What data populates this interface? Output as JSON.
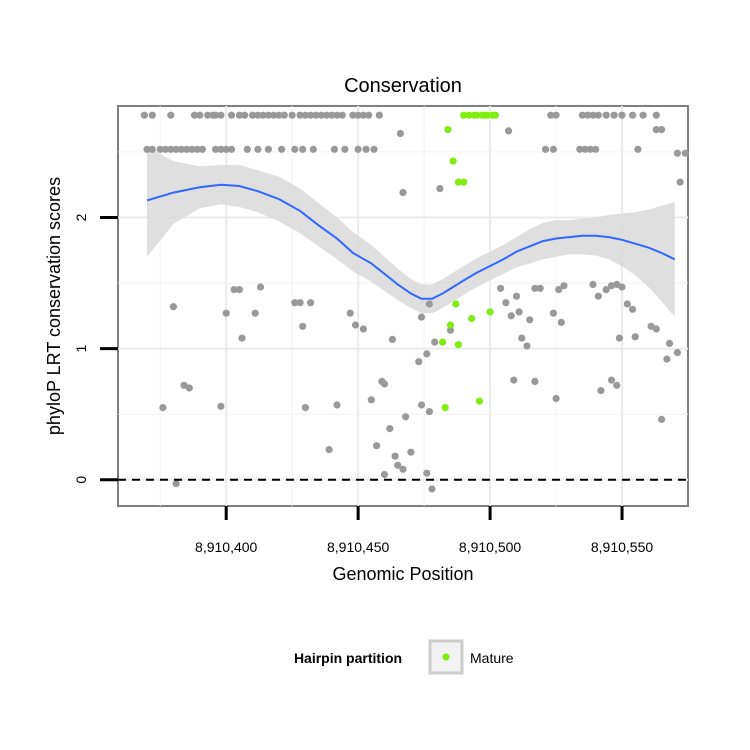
{
  "chart_data": {
    "type": "scatter",
    "title": "Conservation",
    "xlabel": "Genomic Position",
    "ylabel": "phyloP LRT conservation scores",
    "xlim": [
      8910359,
      8910575
    ],
    "ylim": [
      -0.2,
      2.85
    ],
    "x_ticks": [
      {
        "value": 8910400,
        "label": "8,910,400"
      },
      {
        "value": 8910450,
        "label": "8,910,450"
      },
      {
        "value": 8910500,
        "label": "8,910,500"
      },
      {
        "value": 8910550,
        "label": "8,910,550"
      }
    ],
    "y_ticks": [
      {
        "value": 0,
        "label": "0"
      },
      {
        "value": 1,
        "label": "1"
      },
      {
        "value": 2,
        "label": "2"
      }
    ],
    "grid": true,
    "reference_line": {
      "y": 0,
      "style": "dashed"
    },
    "legend": {
      "title": "Hairpin partition",
      "position": "bottom",
      "entries": [
        {
          "label": "Mature",
          "color": "#80ee10"
        }
      ]
    },
    "colors": {
      "other_points": "#999999",
      "mature_points": "#80ee10",
      "smooth_line": "#3366ff",
      "confidence_band": "#d9d9d9"
    },
    "series": [
      {
        "name": "",
        "color": "#999999",
        "points": [
          [
            8910369,
            2.78
          ],
          [
            8910372,
            2.78
          ],
          [
            8910379,
            2.78
          ],
          [
            8910388,
            2.78
          ],
          [
            8910390,
            2.78
          ],
          [
            8910393,
            2.78
          ],
          [
            8910395,
            2.78
          ],
          [
            8910396,
            2.78
          ],
          [
            8910398,
            2.78
          ],
          [
            8910402,
            2.78
          ],
          [
            8910405,
            2.78
          ],
          [
            8910407,
            2.78
          ],
          [
            8910410,
            2.78
          ],
          [
            8910412,
            2.78
          ],
          [
            8910414,
            2.78
          ],
          [
            8910416,
            2.78
          ],
          [
            8910418,
            2.78
          ],
          [
            8910420,
            2.78
          ],
          [
            8910422,
            2.78
          ],
          [
            8910425,
            2.78
          ],
          [
            8910428,
            2.78
          ],
          [
            8910430,
            2.78
          ],
          [
            8910432,
            2.78
          ],
          [
            8910434,
            2.78
          ],
          [
            8910436,
            2.78
          ],
          [
            8910438,
            2.78
          ],
          [
            8910440,
            2.78
          ],
          [
            8910442,
            2.78
          ],
          [
            8910444,
            2.78
          ],
          [
            8910448,
            2.78
          ],
          [
            8910450,
            2.78
          ],
          [
            8910452,
            2.78
          ],
          [
            8910454,
            2.78
          ],
          [
            8910458,
            2.78
          ],
          [
            8910523,
            2.78
          ],
          [
            8910525,
            2.78
          ],
          [
            8910535,
            2.78
          ],
          [
            8910537,
            2.78
          ],
          [
            8910539,
            2.78
          ],
          [
            8910541,
            2.78
          ],
          [
            8910544,
            2.78
          ],
          [
            8910547,
            2.78
          ],
          [
            8910550,
            2.78
          ],
          [
            8910554,
            2.78
          ],
          [
            8910558,
            2.78
          ],
          [
            8910563,
            2.78
          ],
          [
            8910370,
            2.52
          ],
          [
            8910372,
            2.52
          ],
          [
            8910375,
            2.52
          ],
          [
            8910377,
            2.52
          ],
          [
            8910379,
            2.52
          ],
          [
            8910381,
            2.52
          ],
          [
            8910383,
            2.52
          ],
          [
            8910385,
            2.52
          ],
          [
            8910387,
            2.52
          ],
          [
            8910389,
            2.52
          ],
          [
            8910391,
            2.52
          ],
          [
            8910396,
            2.52
          ],
          [
            8910398,
            2.52
          ],
          [
            8910400,
            2.52
          ],
          [
            8910402,
            2.52
          ],
          [
            8910408,
            2.52
          ],
          [
            8910412,
            2.52
          ],
          [
            8910416,
            2.52
          ],
          [
            8910421,
            2.52
          ],
          [
            8910426,
            2.52
          ],
          [
            8910429,
            2.52
          ],
          [
            8910433,
            2.52
          ],
          [
            8910441,
            2.52
          ],
          [
            8910445,
            2.52
          ],
          [
            8910450,
            2.52
          ],
          [
            8910453,
            2.52
          ],
          [
            8910456,
            2.52
          ],
          [
            8910521,
            2.52
          ],
          [
            8910524,
            2.52
          ],
          [
            8910534,
            2.52
          ],
          [
            8910536,
            2.52
          ],
          [
            8910538,
            2.52
          ],
          [
            8910540,
            2.52
          ],
          [
            8910556,
            2.52
          ],
          [
            8910571,
            2.49
          ],
          [
            8910574,
            2.49
          ],
          [
            8910563,
            2.67
          ],
          [
            8910565,
            2.67
          ],
          [
            8910507,
            2.66
          ],
          [
            8910466,
            2.64
          ],
          [
            8910572,
            2.27
          ],
          [
            8910467,
            2.19
          ],
          [
            8910481,
            2.22
          ],
          [
            8910380,
            1.32
          ],
          [
            8910403,
            1.45
          ],
          [
            8910405,
            1.45
          ],
          [
            8910413,
            1.47
          ],
          [
            8910400,
            1.27
          ],
          [
            8910411,
            1.27
          ],
          [
            8910406,
            1.08
          ],
          [
            8910426,
            1.35
          ],
          [
            8910428,
            1.35
          ],
          [
            8910432,
            1.35
          ],
          [
            8910429,
            1.17
          ],
          [
            8910447,
            1.27
          ],
          [
            8910449,
            1.18
          ],
          [
            8910452,
            1.15
          ],
          [
            8910463,
            1.07
          ],
          [
            8910474,
            1.24
          ],
          [
            8910477,
            1.34
          ],
          [
            8910476,
            0.96
          ],
          [
            8910473,
            0.9
          ],
          [
            8910485,
            1.14
          ],
          [
            8910479,
            1.05
          ],
          [
            8910504,
            1.46
          ],
          [
            8910506,
            1.35
          ],
          [
            8910508,
            1.25
          ],
          [
            8910510,
            1.4
          ],
          [
            8910511,
            1.28
          ],
          [
            8910512,
            1.08
          ],
          [
            8910514,
            1.02
          ],
          [
            8910515,
            1.22
          ],
          [
            8910517,
            1.46
          ],
          [
            8910519,
            1.46
          ],
          [
            8910524,
            1.27
          ],
          [
            8910526,
            1.45
          ],
          [
            8910528,
            1.48
          ],
          [
            8910527,
            1.2
          ],
          [
            8910539,
            1.49
          ],
          [
            8910541,
            1.4
          ],
          [
            8910544,
            1.45
          ],
          [
            8910546,
            1.48
          ],
          [
            8910548,
            1.49
          ],
          [
            8910550,
            1.47
          ],
          [
            8910552,
            1.34
          ],
          [
            8910549,
            1.08
          ],
          [
            8910554,
            1.3
          ],
          [
            8910555,
            1.09
          ],
          [
            8910561,
            1.17
          ],
          [
            8910563,
            1.15
          ],
          [
            8910568,
            1.04
          ],
          [
            8910571,
            0.97
          ],
          [
            8910567,
            0.92
          ],
          [
            8910376,
            0.55
          ],
          [
            8910384,
            0.72
          ],
          [
            8910386,
            0.7
          ],
          [
            8910398,
            0.56
          ],
          [
            8910430,
            0.55
          ],
          [
            8910439,
            0.23
          ],
          [
            8910442,
            0.57
          ],
          [
            8910455,
            0.61
          ],
          [
            8910459,
            0.75
          ],
          [
            8910460,
            0.73
          ],
          [
            8910462,
            0.39
          ],
          [
            8910457,
            0.26
          ],
          [
            8910460,
            0.04
          ],
          [
            8910465,
            0.11
          ],
          [
            8910464,
            0.18
          ],
          [
            8910467,
            0.08
          ],
          [
            8910468,
            0.48
          ],
          [
            8910470,
            0.21
          ],
          [
            8910474,
            0.57
          ],
          [
            8910477,
            0.52
          ],
          [
            8910476,
            0.05
          ],
          [
            8910478,
            -0.07
          ],
          [
            8910509,
            0.76
          ],
          [
            8910517,
            0.75
          ],
          [
            8910525,
            0.62
          ],
          [
            8910542,
            0.68
          ],
          [
            8910546,
            0.76
          ],
          [
            8910548,
            0.72
          ],
          [
            8910565,
            0.46
          ],
          [
            8910381,
            -0.03
          ]
        ]
      },
      {
        "name": "Mature",
        "color": "#80ee10",
        "points": [
          [
            8910490,
            2.78
          ],
          [
            8910492,
            2.78
          ],
          [
            8910494,
            2.78
          ],
          [
            8910495,
            2.78
          ],
          [
            8910497,
            2.78
          ],
          [
            8910498,
            2.78
          ],
          [
            8910499,
            2.78
          ],
          [
            8910501,
            2.78
          ],
          [
            8910502,
            2.78
          ],
          [
            8910484,
            2.67
          ],
          [
            8910486,
            2.43
          ],
          [
            8910488,
            2.27
          ],
          [
            8910490,
            2.27
          ],
          [
            8910487,
            1.34
          ],
          [
            8910493,
            1.23
          ],
          [
            8910500,
            1.28
          ],
          [
            8910485,
            1.18
          ],
          [
            8910482,
            1.05
          ],
          [
            8910488,
            1.03
          ],
          [
            8910496,
            0.6
          ],
          [
            8910483,
            0.55
          ]
        ]
      }
    ],
    "smooth_fit": {
      "x": [
        8910370,
        8910380,
        8910390,
        8910398,
        8910405,
        8910412,
        8910420,
        8910428,
        8910435,
        8910442,
        8910448,
        8910455,
        8910460,
        8910465,
        8910470,
        8910474,
        8910478,
        8910482,
        8910486,
        8910490,
        8910495,
        8910500,
        8910505,
        8910510,
        8910515,
        8910520,
        8910525,
        8910530,
        8910535,
        8910540,
        8910545,
        8910550,
        8910555,
        8910560,
        8910565,
        8910570
      ],
      "y": [
        2.13,
        2.19,
        2.23,
        2.25,
        2.24,
        2.2,
        2.14,
        2.05,
        1.94,
        1.84,
        1.73,
        1.65,
        1.57,
        1.49,
        1.42,
        1.38,
        1.38,
        1.42,
        1.47,
        1.52,
        1.58,
        1.63,
        1.68,
        1.74,
        1.78,
        1.82,
        1.84,
        1.85,
        1.86,
        1.86,
        1.85,
        1.83,
        1.8,
        1.77,
        1.73,
        1.68
      ],
      "lower": [
        1.7,
        1.95,
        2.07,
        2.1,
        2.08,
        2.04,
        1.97,
        1.88,
        1.78,
        1.68,
        1.59,
        1.51,
        1.44,
        1.37,
        1.31,
        1.27,
        1.27,
        1.31,
        1.36,
        1.41,
        1.47,
        1.52,
        1.57,
        1.62,
        1.65,
        1.68,
        1.7,
        1.72,
        1.72,
        1.71,
        1.68,
        1.63,
        1.56,
        1.47,
        1.36,
        1.24
      ],
      "upper": [
        2.54,
        2.43,
        2.39,
        2.4,
        2.4,
        2.36,
        2.31,
        2.22,
        2.11,
        2.0,
        1.89,
        1.79,
        1.7,
        1.61,
        1.53,
        1.49,
        1.49,
        1.53,
        1.58,
        1.63,
        1.69,
        1.74,
        1.79,
        1.85,
        1.91,
        1.96,
        1.98,
        1.98,
        1.99,
        2.0,
        2.02,
        2.03,
        2.04,
        2.06,
        2.09,
        2.12
      ]
    }
  }
}
